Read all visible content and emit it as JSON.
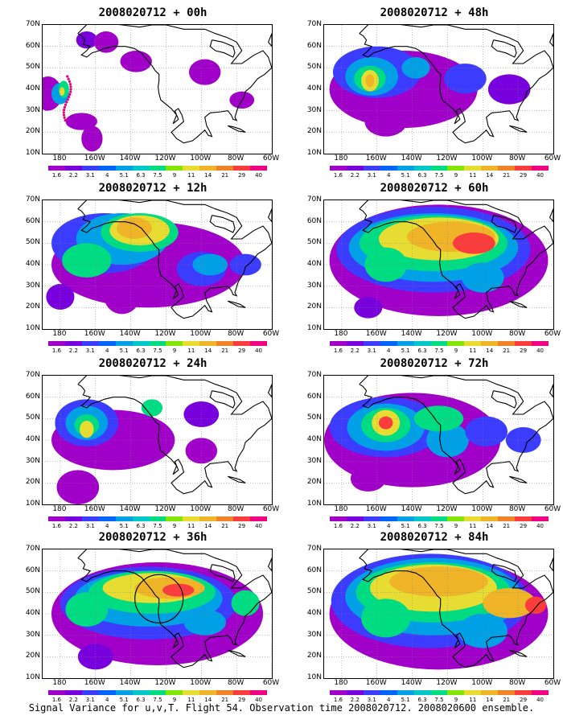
{
  "panels": [
    {
      "title": "2008020712 + 00h",
      "level": 0
    },
    {
      "title": "2008020712 + 48h",
      "level": 4
    },
    {
      "title": "2008020712 + 12h",
      "level": 1
    },
    {
      "title": "2008020712 + 60h",
      "level": 5
    },
    {
      "title": "2008020712 + 24h",
      "level": 2
    },
    {
      "title": "2008020712 + 72h",
      "level": 6
    },
    {
      "title": "2008020712 + 36h",
      "level": 3
    },
    {
      "title": "2008020712 + 84h",
      "level": 7
    }
  ],
  "lat_labels": [
    "70N",
    "60N",
    "50N",
    "40N",
    "30N",
    "20N",
    "10N"
  ],
  "lon_labels": [
    "180",
    "160W",
    "140W",
    "120W",
    "100W",
    "80W",
    "60W"
  ],
  "colorbar": {
    "labels": [
      "1.6",
      "2.2",
      "3.1",
      "4",
      "5.1",
      "6.3",
      "7.5",
      "9",
      "11",
      "14",
      "21",
      "29",
      "40"
    ],
    "colors": [
      "#a000c8",
      "#7800dc",
      "#3c3cff",
      "#0064ff",
      "#00a0e6",
      "#00c8c8",
      "#00dc82",
      "#82e600",
      "#e6dc32",
      "#f0b428",
      "#f08228",
      "#fa3c3c",
      "#f00082"
    ]
  },
  "caption": "Signal Variance for u,v,T. Flight 54. Observation time 2008020712. 2008020600 ensemble."
}
